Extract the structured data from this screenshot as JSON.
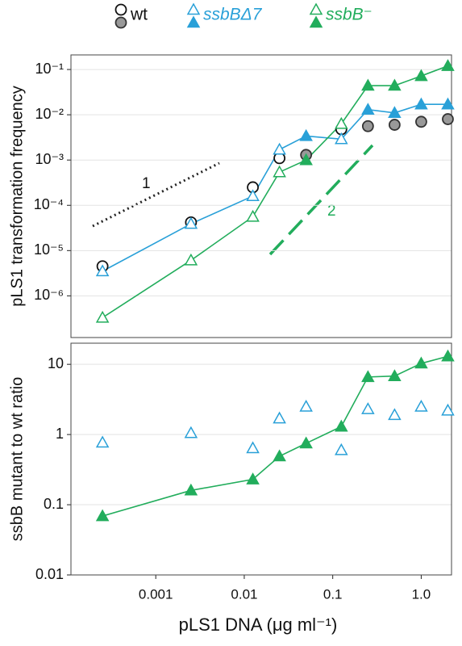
{
  "chart_data": [
    {
      "type": "scatter",
      "ylabel": "pLS1 transformation frequency",
      "log": true,
      "grid": true,
      "legend": "top",
      "x": [
        0.00025,
        0.0025,
        0.0125,
        0.025,
        0.05,
        0.125,
        0.25,
        0.5,
        1,
        2
      ],
      "xlim": [
        0.00011,
        2.2
      ],
      "ylim": [
        1.2e-07,
        0.21
      ],
      "yticks": [
        {
          "value": 0.1,
          "label": "10⁻¹"
        },
        {
          "value": 0.01,
          "label": "10⁻²"
        },
        {
          "value": 0.001,
          "label": "10⁻³"
        },
        {
          "value": 0.0001,
          "label": "10⁻⁴"
        },
        {
          "value": 1e-05,
          "label": "10⁻⁵"
        },
        {
          "value": 1e-06,
          "label": "10⁻⁶"
        }
      ],
      "series": [
        {
          "name": "wt",
          "color": "#999999",
          "marker": "circle",
          "line": false,
          "values": [
            4.5e-06,
            4.2e-05,
            0.00025,
            0.0011,
            0.0013,
            0.0048,
            0.0056,
            0.006,
            0.007,
            0.008
          ],
          "filled": [
            false,
            false,
            false,
            false,
            true,
            false,
            true,
            true,
            true,
            true
          ]
        },
        {
          "name": "ssbBΔ7",
          "color": "#29a0d8",
          "marker": "triangle",
          "line": true,
          "values": [
            3.5e-06,
            3.9e-05,
            0.00016,
            0.0017,
            0.0034,
            0.0029,
            0.013,
            0.011,
            0.017,
            0.017
          ],
          "filled": [
            false,
            false,
            false,
            false,
            true,
            false,
            true,
            true,
            true,
            true
          ]
        },
        {
          "name": "ssbB⁻",
          "color": "#22ad5c",
          "marker": "triangle",
          "line": true,
          "values": [
            3.3e-07,
            6.1e-06,
            5.6e-05,
            0.00054,
            0.001,
            0.0063,
            0.044,
            0.044,
            0.072,
            0.12
          ],
          "filled": [
            false,
            false,
            false,
            false,
            true,
            false,
            true,
            true,
            true,
            true
          ]
        }
      ],
      "annotations": [
        "1",
        "2"
      ]
    },
    {
      "type": "scatter",
      "ylabel": "ssbB mutant to wt ratio",
      "xlabel": "pLS1 DNA (μg ml⁻¹)",
      "log": true,
      "grid": true,
      "x": [
        0.00025,
        0.0025,
        0.0125,
        0.025,
        0.05,
        0.125,
        0.25,
        0.5,
        1,
        2
      ],
      "xlim": [
        0.00011,
        2.2
      ],
      "ylim": [
        0.01,
        20
      ],
      "xticks": [
        0.001,
        0.01,
        0.1,
        {
          "value": 1,
          "label": "1.0"
        }
      ],
      "yticks": [
        10,
        1,
        0.1,
        0.01
      ],
      "series": [
        {
          "name": "ssbBΔ7",
          "color": "#29a0d8",
          "marker": "triangle",
          "line": false,
          "values": [
            0.77,
            1.05,
            0.64,
            1.7,
            2.5,
            0.6,
            2.3,
            1.9,
            2.5,
            2.2
          ],
          "filled": [
            false,
            false,
            false,
            false,
            false,
            false,
            false,
            false,
            false,
            false
          ]
        },
        {
          "name": "ssbB⁻",
          "color": "#22ad5c",
          "marker": "triangle",
          "line": true,
          "values": [
            0.069,
            0.16,
            0.23,
            0.49,
            0.75,
            1.3,
            6.6,
            6.8,
            10.3,
            13
          ],
          "filled": [
            true,
            true,
            true,
            true,
            true,
            true,
            true,
            true,
            true,
            true
          ]
        }
      ]
    }
  ]
}
